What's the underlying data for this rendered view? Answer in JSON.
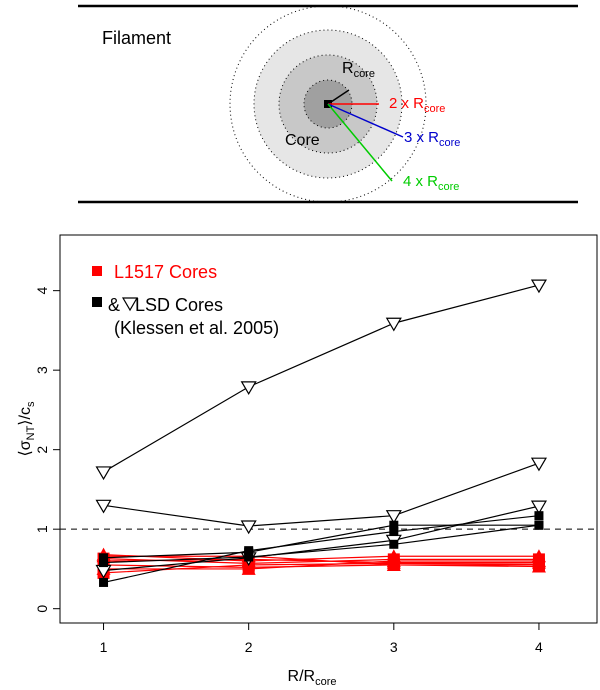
{
  "colors": {
    "lsd": "#000000",
    "l1517": "#ff0000",
    "ring_2r": "#ff0000",
    "ring_3r": "#0000cc",
    "ring_4r": "#00cc00",
    "core_fill": "#c8c8c8",
    "core_inner": "#a0a0a0",
    "halo_fill": "#e6e6e6"
  },
  "schematic": {
    "filament_label": "Filament",
    "core_label": "Core",
    "rcore_label": {
      "main": "R",
      "sub": "core"
    },
    "radii": [
      {
        "prefix": "2 x R",
        "sub": "core"
      },
      {
        "prefix": "3 x R",
        "sub": "core"
      },
      {
        "prefix": "4 x R",
        "sub": "core"
      }
    ]
  },
  "chart_data": {
    "type": "line",
    "xlabel": {
      "main": "R/R",
      "sub": "core"
    },
    "ylabel": {
      "pre": "⟨σ",
      "sub": "NT",
      "mid": "⟩/c",
      "sub2": "s"
    },
    "x": [
      1,
      2,
      3,
      4
    ],
    "xlim": [
      0.7,
      4.4
    ],
    "ylim": [
      -0.18,
      4.7
    ],
    "xticks": [
      1,
      2,
      3,
      4
    ],
    "yticks": [
      0,
      1,
      2,
      3,
      4
    ],
    "reference_line": 1,
    "grid": false,
    "legend": {
      "placement": "top-left",
      "entries": [
        {
          "text": "L1517 Cores",
          "color": "#ff0000"
        },
        {
          "text": "&   LSD Cores",
          "color": "#000000"
        },
        {
          "text": "(Klessen et al. 2005)",
          "color": "#000000"
        }
      ]
    },
    "series_lsd_triangle": [
      [
        1.72,
        2.79,
        3.59,
        4.07
      ],
      [
        1.3,
        1.04,
        1.17,
        1.83
      ],
      [
        0.48,
        0.64,
        0.86,
        1.29
      ]
    ],
    "series_lsd_square": [
      [
        0.33,
        0.73,
        0.97,
        1.17
      ],
      [
        0.58,
        0.65,
        0.81,
        1.05
      ],
      [
        0.64,
        0.71,
        1.05,
        1.05
      ]
    ],
    "series_l1517": [
      [
        0.68,
        0.6,
        0.66,
        0.66
      ],
      [
        0.63,
        0.57,
        0.62,
        0.62
      ],
      [
        0.6,
        0.62,
        0.58,
        0.58
      ],
      [
        0.55,
        0.52,
        0.55,
        0.55
      ],
      [
        0.5,
        0.5,
        0.6,
        0.6
      ],
      [
        0.45,
        0.55,
        0.57,
        0.56
      ],
      [
        0.66,
        0.66,
        0.55,
        0.53
      ]
    ]
  }
}
